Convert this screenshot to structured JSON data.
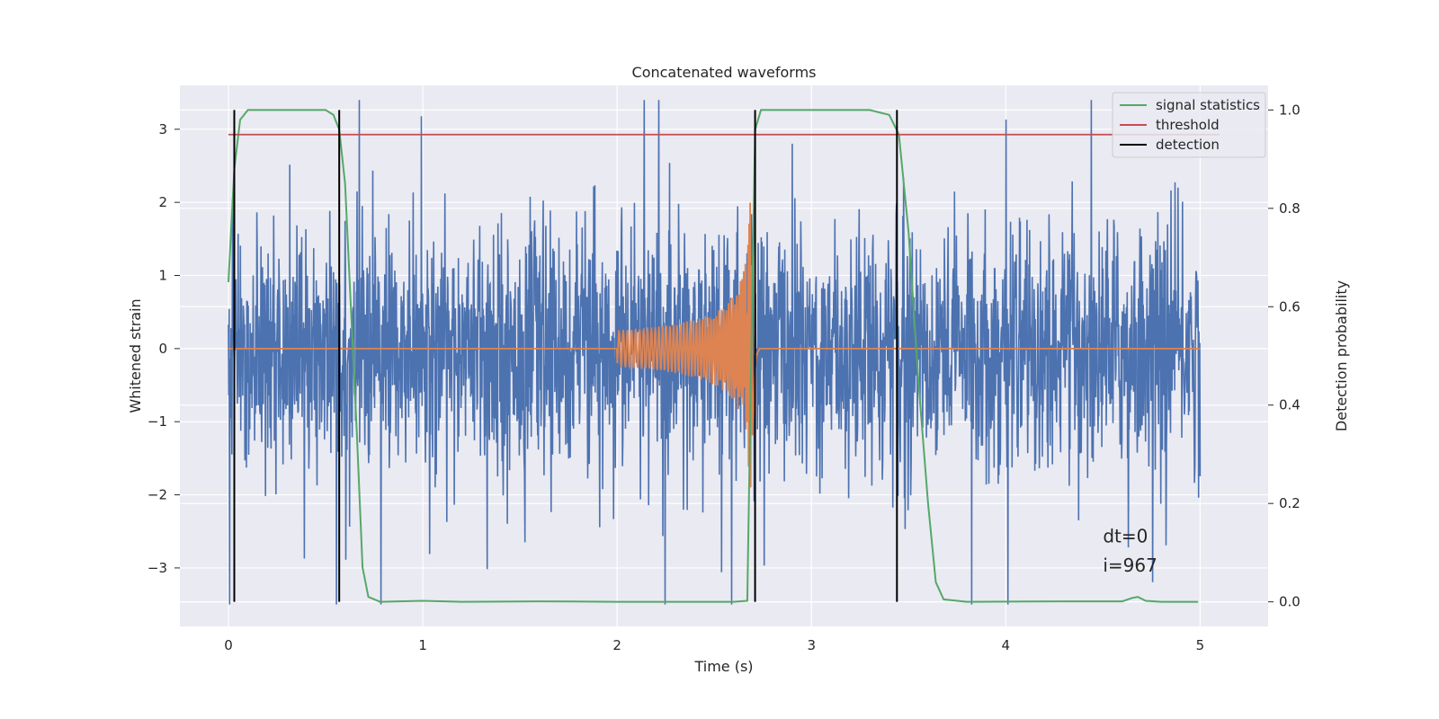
{
  "chart_data": {
    "type": "line",
    "title": "Concatenated waveforms",
    "xlabel": "Time (s)",
    "ylabel": "Whitened strain",
    "y2label": "Detection probability",
    "xlim": [
      -0.25,
      5.35
    ],
    "ylim": [
      -3.8,
      3.6
    ],
    "y2lim": [
      -0.05,
      1.05
    ],
    "xticks": [
      0,
      1,
      2,
      3,
      4,
      5
    ],
    "xtick_labels": [
      "0",
      "1",
      "2",
      "3",
      "4",
      "5"
    ],
    "yticks": [
      -3,
      -2,
      -1,
      0,
      1,
      2,
      3
    ],
    "ytick_labels": [
      "−3",
      "−2",
      "−1",
      "0",
      "1",
      "2",
      "3"
    ],
    "y2ticks": [
      0.0,
      0.2,
      0.4,
      0.6,
      0.8,
      1.0
    ],
    "y2tick_labels": [
      "0.0",
      "0.2",
      "0.4",
      "0.6",
      "0.8",
      "1.0"
    ],
    "grid": true,
    "legend_position": "top-right",
    "legend": [
      "signal statistics",
      "threshold",
      "detection"
    ],
    "annotations": [
      "dt=0",
      "i=967"
    ],
    "colors": {
      "strain": "#4c72b0",
      "template": "#dd8452",
      "signal_statistics": "#55a868",
      "threshold": "#c44e52",
      "detection": "#000000",
      "background": "#eaeaf2",
      "grid": "#ffffff"
    },
    "series": [
      {
        "name": "signal statistics",
        "axis": "right",
        "points": [
          [
            0.0,
            0.65
          ],
          [
            0.03,
            0.88
          ],
          [
            0.06,
            0.98
          ],
          [
            0.1,
            1.0
          ],
          [
            0.5,
            1.0
          ],
          [
            0.54,
            0.99
          ],
          [
            0.57,
            0.96
          ],
          [
            0.6,
            0.85
          ],
          [
            0.63,
            0.6
          ],
          [
            0.66,
            0.35
          ],
          [
            0.69,
            0.07
          ],
          [
            0.72,
            0.01
          ],
          [
            0.78,
            0.0
          ],
          [
            1.0,
            0.002
          ],
          [
            1.2,
            0.0
          ],
          [
            1.6,
            0.001
          ],
          [
            2.0,
            0.0
          ],
          [
            2.6,
            0.0
          ],
          [
            2.67,
            0.002
          ],
          [
            2.69,
            0.5
          ],
          [
            2.71,
            0.96
          ],
          [
            2.74,
            1.0
          ],
          [
            3.3,
            1.0
          ],
          [
            3.4,
            0.99
          ],
          [
            3.45,
            0.95
          ],
          [
            3.5,
            0.75
          ],
          [
            3.55,
            0.45
          ],
          [
            3.6,
            0.2
          ],
          [
            3.64,
            0.04
          ],
          [
            3.68,
            0.005
          ],
          [
            3.8,
            0.0
          ],
          [
            4.3,
            0.001
          ],
          [
            4.6,
            0.001
          ],
          [
            4.65,
            0.008
          ],
          [
            4.68,
            0.01
          ],
          [
            4.72,
            0.002
          ],
          [
            4.8,
            0.0
          ],
          [
            4.99,
            0.0
          ]
        ]
      },
      {
        "name": "threshold",
        "axis": "right",
        "x": [
          0.0,
          5.1
        ],
        "y": [
          0.95,
          0.95
        ]
      },
      {
        "name": "detection",
        "axis": "right",
        "x": [
          0.03,
          0.57,
          2.71,
          3.44
        ],
        "y_range": [
          0.0,
          1.0
        ]
      }
    ],
    "strain": {
      "x_range": [
        0.0,
        5.0
      ],
      "typical_amplitude": 0.8,
      "peak_range": [
        -3.5,
        3.4
      ]
    },
    "template": {
      "start": 2.0,
      "merger": 2.7,
      "peak_amplitude": 2.0
    }
  }
}
